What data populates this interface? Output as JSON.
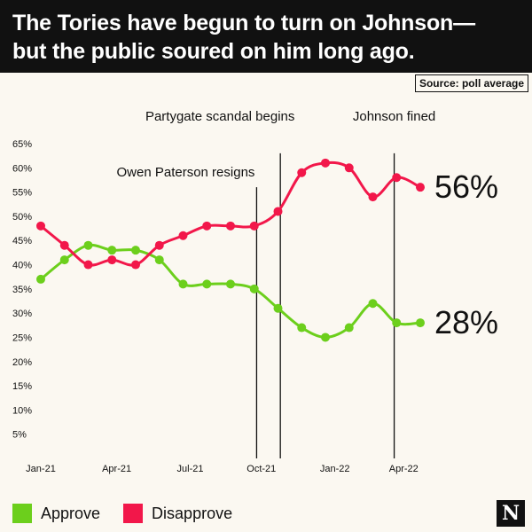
{
  "header": {
    "title_line1": "The Tories have begun to turn on Johnson—",
    "title_line2": "but the public soured on him long ago."
  },
  "source_label": "Source: poll average",
  "legend": [
    {
      "label": "Approve",
      "color": "#6ccf1c"
    },
    {
      "label": "Disapprove",
      "color": "#f2174a"
    }
  ],
  "logo_text": "N",
  "chart_data": {
    "type": "line",
    "title": "The Tories have begun to turn on Johnson—but the public soured on him long ago.",
    "xlabel": "",
    "ylabel": "",
    "x": [
      0,
      1,
      2,
      3,
      4,
      5,
      6,
      7,
      8,
      9,
      10,
      11,
      12,
      13,
      14,
      15,
      16
    ],
    "x_range": [
      0,
      17
    ],
    "x_ticks": [
      {
        "label": "Jan-21",
        "x": 0
      },
      {
        "label": "Apr-21",
        "x": 3.2
      },
      {
        "label": "Jul-21",
        "x": 6.3
      },
      {
        "label": "Oct-21",
        "x": 9.3
      },
      {
        "label": "Jan-22",
        "x": 12.4
      },
      {
        "label": "Apr-22",
        "x": 15.3
      }
    ],
    "ylim": [
      0,
      65
    ],
    "y_ticks": [
      5,
      10,
      15,
      20,
      25,
      30,
      35,
      40,
      45,
      50,
      55,
      60,
      65
    ],
    "y_tick_suffix": "%",
    "grid": false,
    "series": [
      {
        "name": "Approve",
        "color": "#6ccf1c",
        "values": [
          37,
          41,
          44,
          43,
          43,
          41,
          36,
          36,
          36,
          35,
          31,
          27,
          25,
          27,
          32,
          28,
          28
        ],
        "end_label": "28%"
      },
      {
        "name": "Disapprove",
        "color": "#f2174a",
        "values": [
          48,
          44,
          40,
          41,
          40,
          44,
          46,
          48,
          48,
          48,
          51,
          59,
          61,
          60,
          54,
          58,
          56
        ],
        "end_label": "56%"
      }
    ],
    "annotations": [
      {
        "label": "Owen Paterson resigns",
        "x": 9.1,
        "y_top": 56
      },
      {
        "label": "Partygate scandal begins",
        "x": 10.1,
        "y_top": 63
      },
      {
        "label": "Johnson fined",
        "x": 14.9,
        "y_top": 63
      }
    ]
  }
}
